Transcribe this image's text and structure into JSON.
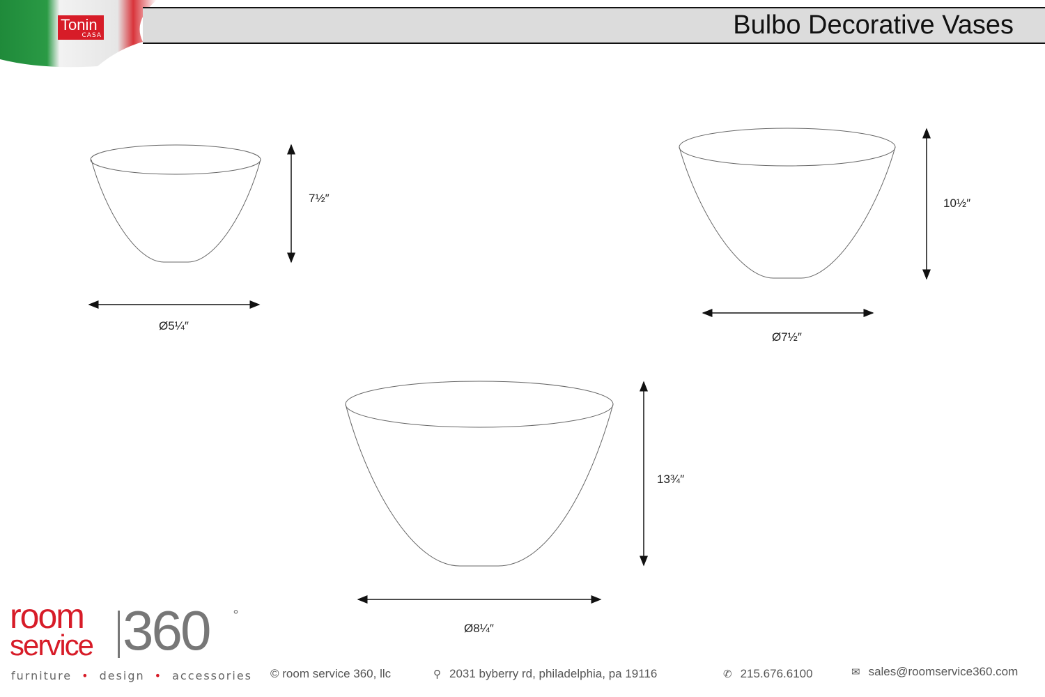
{
  "header": {
    "title": "Bulbo Decorative Vases",
    "brand_logo": {
      "main": "Tonin",
      "sub": "CASA"
    }
  },
  "vases": [
    {
      "height_label": "7½″",
      "diameter_label": "Ø5¼″"
    },
    {
      "height_label": "10½″",
      "diameter_label": "Ø7½″"
    },
    {
      "height_label": "13¾″",
      "diameter_label": "Ø8¼″"
    }
  ],
  "footer": {
    "logo": {
      "line1": "room",
      "line2": "service",
      "number": "360",
      "degree": "°"
    },
    "tagline": [
      "furniture",
      "design",
      "accessories"
    ],
    "copyright": "© room service 360, llc",
    "address": "2031 byberry rd, philadelphia, pa 19116",
    "phone": "215.676.6100",
    "email": "sales@roomservice360.com",
    "icons": {
      "address": "map-pin-icon",
      "phone": "phone-icon",
      "email": "envelope-icon"
    }
  },
  "colors": {
    "brand_red": "#d71c28",
    "header_gray": "#dcdcdc",
    "logo_gray": "#777777"
  }
}
